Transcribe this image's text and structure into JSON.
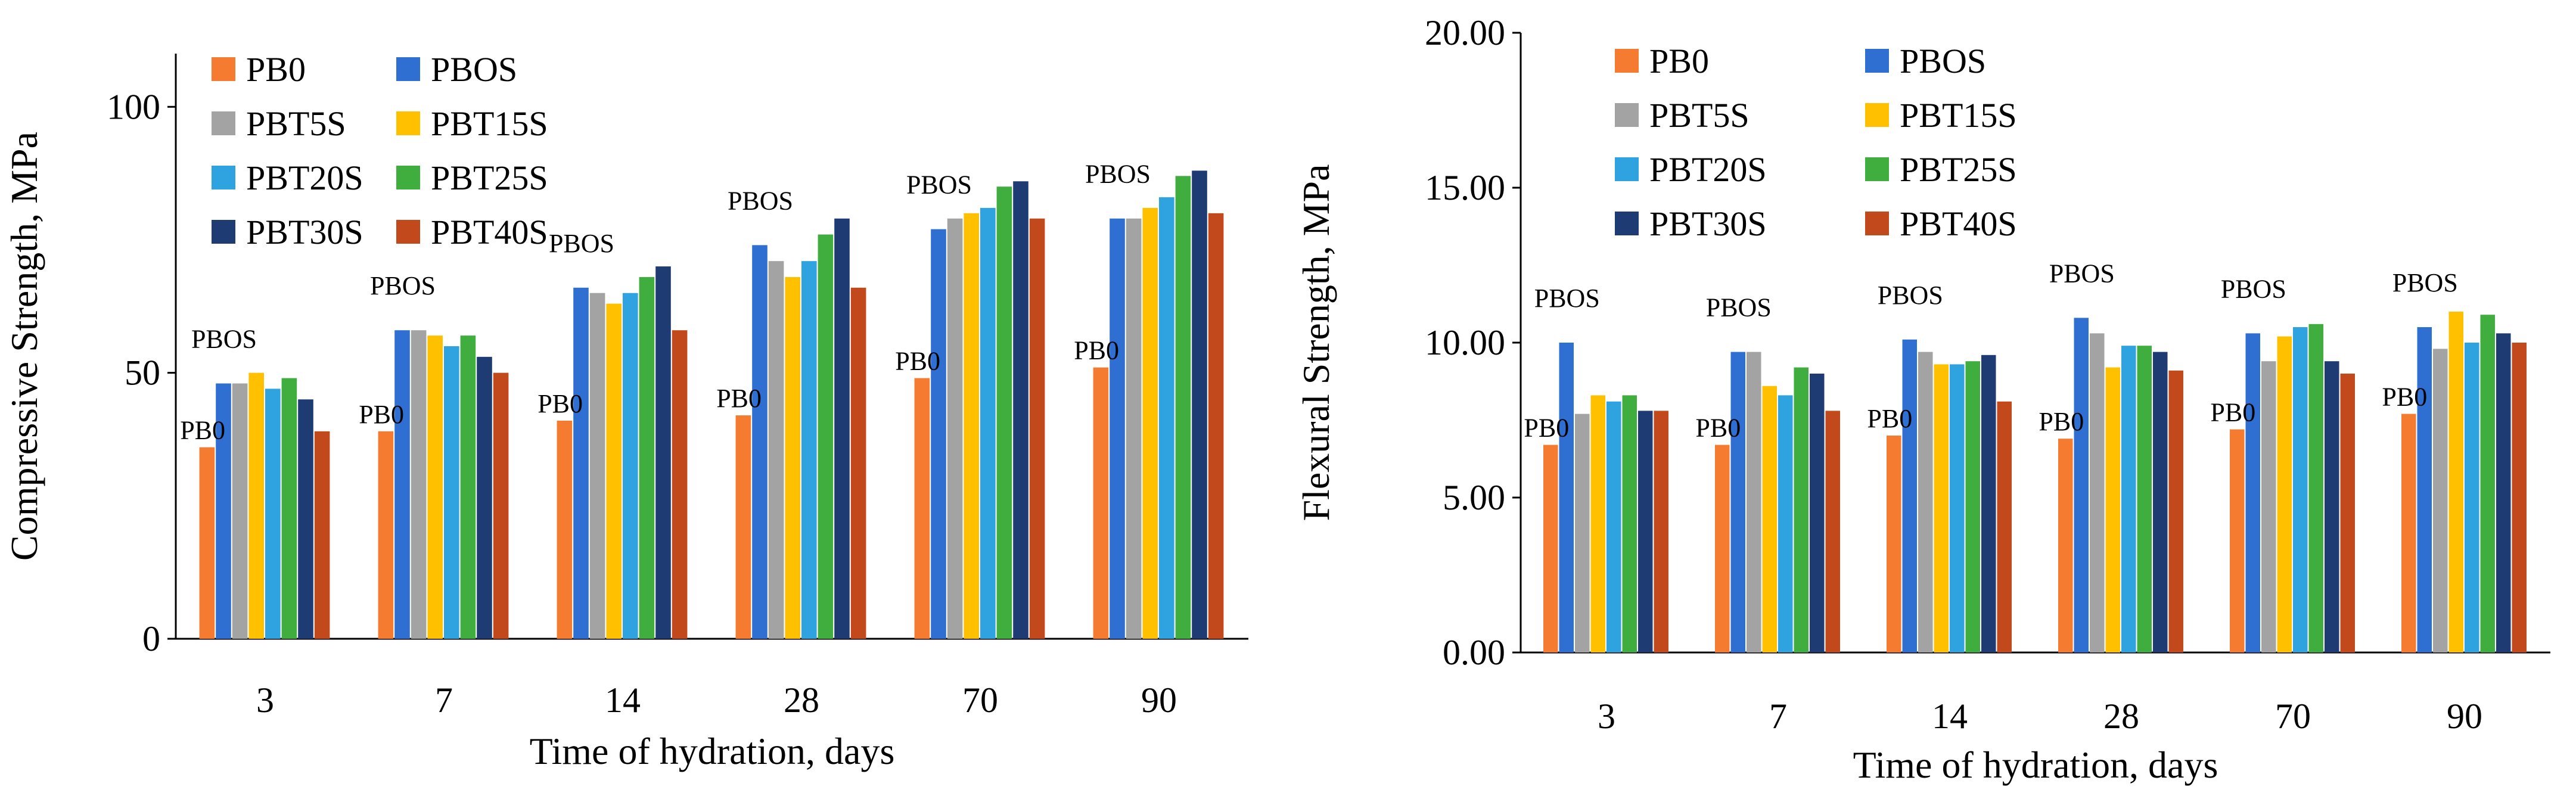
{
  "series_colors": {
    "PB0": "#f47b2f",
    "PBOS": "#2f6fd1",
    "PBT5S": "#a3a3a3",
    "PBT15S": "#ffc000",
    "PBT20S": "#2ea3e0",
    "PBT25S": "#3fae3f",
    "PBT30S": "#1f3b73",
    "PBT40S": "#c2491b"
  },
  "chart_data": [
    {
      "type": "bar",
      "title": "",
      "xlabel": "Time of hydration, days",
      "ylabel": "Compressive Strength, MPa",
      "categories": [
        "3",
        "7",
        "14",
        "28",
        "70",
        "90"
      ],
      "ylim": [
        0,
        110
      ],
      "yticks": [
        "0",
        "50",
        "100"
      ],
      "ytick_values": [
        0,
        50,
        100
      ],
      "legend_position": "top-left",
      "series": [
        {
          "name": "PB0",
          "values": [
            36,
            39,
            41,
            42,
            49,
            51
          ]
        },
        {
          "name": "PBOS",
          "values": [
            48,
            58,
            66,
            74,
            77,
            79
          ]
        },
        {
          "name": "PBT5S",
          "values": [
            48,
            58,
            65,
            71,
            79,
            79
          ]
        },
        {
          "name": "PBT15S",
          "values": [
            50,
            57,
            63,
            68,
            80,
            81
          ]
        },
        {
          "name": "PBT20S",
          "values": [
            47,
            55,
            65,
            71,
            81,
            83
          ]
        },
        {
          "name": "PBT25S",
          "values": [
            49,
            57,
            68,
            76,
            85,
            87
          ]
        },
        {
          "name": "PBT30S",
          "values": [
            45,
            53,
            70,
            79,
            86,
            88
          ]
        },
        {
          "name": "PBT40S",
          "values": [
            39,
            50,
            58,
            66,
            79,
            80
          ]
        }
      ],
      "annotations": [
        {
          "category": "3",
          "series": "PB0",
          "text": "PB0"
        },
        {
          "category": "3",
          "series": "PBOS",
          "text": "PBOS"
        },
        {
          "category": "7",
          "series": "PB0",
          "text": "PB0"
        },
        {
          "category": "7",
          "series": "PBOS",
          "text": "PBOS"
        },
        {
          "category": "14",
          "series": "PB0",
          "text": "PB0"
        },
        {
          "category": "14",
          "series": "PBOS",
          "text": "PBOS"
        },
        {
          "category": "28",
          "series": "PB0",
          "text": "PB0"
        },
        {
          "category": "28",
          "series": "PBOS",
          "text": "PBOS"
        },
        {
          "category": "70",
          "series": "PB0",
          "text": "PB0"
        },
        {
          "category": "70",
          "series": "PBOS",
          "text": "PBOS"
        },
        {
          "category": "90",
          "series": "PB0",
          "text": "PB0"
        },
        {
          "category": "90",
          "series": "PBOS",
          "text": "PBOS"
        }
      ]
    },
    {
      "type": "bar",
      "title": "",
      "xlabel": "Time of hydration, days",
      "ylabel": "Flexural Strength, MPa",
      "categories": [
        "3",
        "7",
        "14",
        "28",
        "70",
        "90"
      ],
      "ylim": [
        0,
        20
      ],
      "yticks": [
        "0.00",
        "5.00",
        "10.00",
        "15.00",
        "20.00"
      ],
      "ytick_values": [
        0,
        5,
        10,
        15,
        20
      ],
      "legend_position": "top",
      "series": [
        {
          "name": "PB0",
          "values": [
            6.7,
            6.7,
            7.0,
            6.9,
            7.2,
            7.7
          ]
        },
        {
          "name": "PBOS",
          "values": [
            10.0,
            9.7,
            10.1,
            10.8,
            10.3,
            10.5
          ]
        },
        {
          "name": "PBT5S",
          "values": [
            7.7,
            9.7,
            9.7,
            10.3,
            9.4,
            9.8
          ]
        },
        {
          "name": "PBT15S",
          "values": [
            8.3,
            8.6,
            9.3,
            9.2,
            10.2,
            11.0
          ]
        },
        {
          "name": "PBT20S",
          "values": [
            8.1,
            8.3,
            9.3,
            9.9,
            10.5,
            10.0
          ]
        },
        {
          "name": "PBT25S",
          "values": [
            8.3,
            9.2,
            9.4,
            9.9,
            10.6,
            10.9
          ]
        },
        {
          "name": "PBT30S",
          "values": [
            7.8,
            9.0,
            9.6,
            9.7,
            9.4,
            10.3
          ]
        },
        {
          "name": "PBT40S",
          "values": [
            7.8,
            7.8,
            8.1,
            9.1,
            9.0,
            10.0
          ]
        }
      ],
      "annotations": [
        {
          "category": "3",
          "series": "PB0",
          "text": "PB0"
        },
        {
          "category": "3",
          "series": "PBOS",
          "text": "PBOS"
        },
        {
          "category": "7",
          "series": "PB0",
          "text": "PB0"
        },
        {
          "category": "7",
          "series": "PBOS",
          "text": "PBOS"
        },
        {
          "category": "14",
          "series": "PB0",
          "text": "PB0"
        },
        {
          "category": "14",
          "series": "PBOS",
          "text": "PBOS"
        },
        {
          "category": "28",
          "series": "PB0",
          "text": "PB0"
        },
        {
          "category": "28",
          "series": "PBOS",
          "text": "PBOS"
        },
        {
          "category": "70",
          "series": "PB0",
          "text": "PB0"
        },
        {
          "category": "70",
          "series": "PBOS",
          "text": "PBOS"
        },
        {
          "category": "90",
          "series": "PB0",
          "text": "PB0"
        },
        {
          "category": "90",
          "series": "PBOS",
          "text": "PBOS"
        }
      ]
    }
  ]
}
